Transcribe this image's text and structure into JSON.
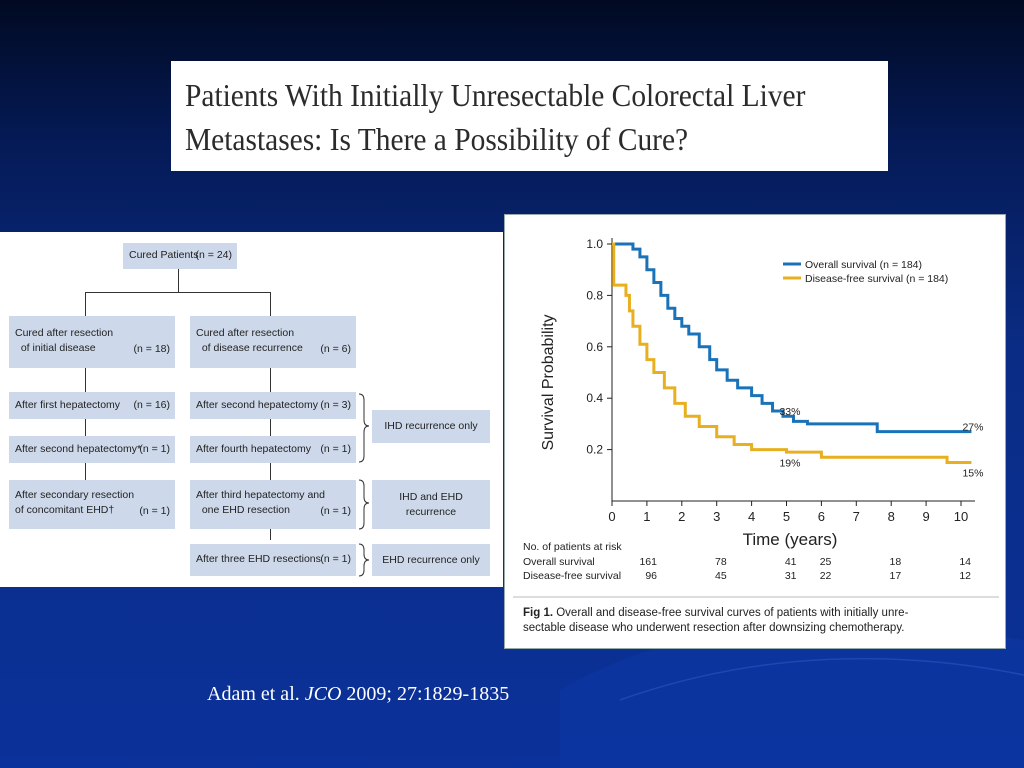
{
  "title": {
    "line1": "Patients With Initially Unresectable Colorectal Liver",
    "line2": "Metastases: Is There a Possibility of Cure?"
  },
  "flowchart": {
    "root": {
      "label": "Cured Patients",
      "n": "(n = 24)"
    },
    "left_column": [
      {
        "label": "Cured after resection\n  of initial disease",
        "n": "(n = 18)"
      },
      {
        "label": "After first hepatectomy",
        "n": "(n = 16)"
      },
      {
        "label": "After second hepatectomy*",
        "n": "(n = 1)"
      },
      {
        "label": "After secondary resection\nof concomitant EHD†",
        "n": "(n = 1)"
      }
    ],
    "right_column": [
      {
        "label": "Cured after resection\n  of disease recurrence",
        "n": "(n = 6)"
      },
      {
        "label": "After second hepatectomy",
        "n": "(n = 3)"
      },
      {
        "label": "After fourth hepatectomy",
        "n": "(n = 1)"
      },
      {
        "label": "After third hepatectomy and\n  one EHD resection",
        "n": "(n = 1)"
      },
      {
        "label": "After three EHD resections",
        "n": "(n = 1)"
      }
    ],
    "recurrence_boxes": [
      "IHD recurrence only",
      "IHD and EHD\nrecurrence",
      "EHD recurrence only"
    ]
  },
  "chart_data": {
    "type": "line",
    "title": "",
    "xlabel": "Time (years)",
    "ylabel": "Survival Probability",
    "xlim": [
      0,
      10.3
    ],
    "ylim": [
      0,
      1.0
    ],
    "x_ticks": [
      "0",
      "1",
      "2",
      "3",
      "4",
      "5",
      "6",
      "7",
      "8",
      "9",
      "10"
    ],
    "y_ticks": [
      "0.2",
      "0.4",
      "0.6",
      "0.8",
      "1.0"
    ],
    "series": [
      {
        "name": "Overall survival (n = 184)",
        "color": "#1a73b8",
        "points": [
          [
            0,
            1.0
          ],
          [
            0.4,
            1.0
          ],
          [
            0.6,
            0.98
          ],
          [
            0.8,
            0.95
          ],
          [
            1.0,
            0.9
          ],
          [
            1.2,
            0.85
          ],
          [
            1.4,
            0.8
          ],
          [
            1.6,
            0.75
          ],
          [
            1.8,
            0.71
          ],
          [
            2.0,
            0.68
          ],
          [
            2.2,
            0.65
          ],
          [
            2.5,
            0.6
          ],
          [
            2.8,
            0.55
          ],
          [
            3.0,
            0.51
          ],
          [
            3.3,
            0.47
          ],
          [
            3.6,
            0.44
          ],
          [
            4.0,
            0.41
          ],
          [
            4.3,
            0.38
          ],
          [
            4.6,
            0.35
          ],
          [
            4.9,
            0.33
          ],
          [
            5.2,
            0.31
          ],
          [
            5.6,
            0.3
          ],
          [
            6.2,
            0.3
          ],
          [
            7.5,
            0.3
          ],
          [
            7.6,
            0.27
          ],
          [
            10.3,
            0.27
          ]
        ]
      },
      {
        "name": "Disease-free survival (n = 184)",
        "color": "#e8b020",
        "points": [
          [
            0,
            1.0
          ],
          [
            0.05,
            0.84
          ],
          [
            0.3,
            0.84
          ],
          [
            0.4,
            0.8
          ],
          [
            0.5,
            0.74
          ],
          [
            0.6,
            0.68
          ],
          [
            0.8,
            0.61
          ],
          [
            1.0,
            0.55
          ],
          [
            1.2,
            0.5
          ],
          [
            1.5,
            0.44
          ],
          [
            1.8,
            0.38
          ],
          [
            2.1,
            0.33
          ],
          [
            2.5,
            0.29
          ],
          [
            3.0,
            0.25
          ],
          [
            3.5,
            0.22
          ],
          [
            4.0,
            0.2
          ],
          [
            5.0,
            0.19
          ],
          [
            6.0,
            0.17
          ],
          [
            8.0,
            0.17
          ],
          [
            9.5,
            0.17
          ],
          [
            9.6,
            0.15
          ],
          [
            10.3,
            0.15
          ]
        ]
      }
    ],
    "annotations": [
      {
        "x": 5.1,
        "y": 0.35,
        "text": "33%"
      },
      {
        "x": 10.3,
        "y": 0.29,
        "text": "27%"
      },
      {
        "x": 5.1,
        "y": 0.15,
        "text": "19%"
      },
      {
        "x": 10.3,
        "y": 0.11,
        "text": "15%"
      }
    ],
    "risk_table": {
      "header": "No. of patients at risk",
      "columns_x": [
        1,
        3,
        5,
        6,
        8,
        10
      ],
      "rows": [
        {
          "label": "Overall survival",
          "values": [
            "161",
            "78",
            "41",
            "25",
            "18",
            "14"
          ]
        },
        {
          "label": "Disease-free survival",
          "values": [
            "96",
            "45",
            "31",
            "22",
            "17",
            "12"
          ]
        }
      ]
    },
    "caption": {
      "bold": "Fig 1.",
      "line1": " Overall and disease-free survival curves of patients with initially unre-",
      "line2": "sectable disease who underwent resection after downsizing chemotherapy."
    }
  },
  "citation": {
    "authors": "Adam et al. ",
    "journal": "JCO",
    "details": " 2009; 27:1829-1835"
  },
  "colors": {
    "background_top": "#010a22",
    "background_bottom": "#0b319a",
    "flow_box": "#cdd9ea",
    "overall_survival": "#1a73b8",
    "disease_free_survival": "#e8b020"
  }
}
